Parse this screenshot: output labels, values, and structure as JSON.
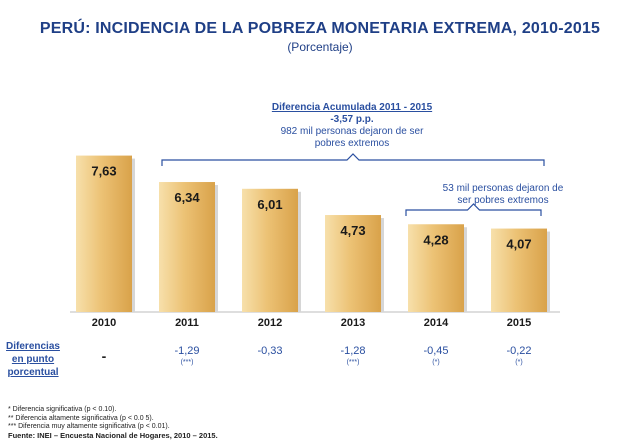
{
  "header": {
    "title": "PERÚ: INCIDENCIA DE LA POBREZA MONETARIA EXTREMA, 2010-2015",
    "subtitle": "(Porcentaje)"
  },
  "annotations": {
    "accumulated": {
      "title": "Diferencia Acumulada 2011 - 2015",
      "value": "-3,57 p.p.",
      "line1": "982 mil personas dejaron de ser",
      "line2": "pobres extremos"
    },
    "last_year": {
      "line1": "53 mil personas dejaron de",
      "line2": "ser pobres extremos"
    }
  },
  "differences": {
    "label_line1": "Diferencias",
    "label_line2": "en punto",
    "label_line3": "porcentual",
    "items": [
      {
        "value": "-",
        "sig": ""
      },
      {
        "value": "-1,29",
        "sig": "(***)"
      },
      {
        "value": "-0,33",
        "sig": ""
      },
      {
        "value": "-1,28",
        "sig": "(***)"
      },
      {
        "value": "-0,45",
        "sig": "(*)"
      },
      {
        "value": "-0,22",
        "sig": "(*)"
      }
    ]
  },
  "notes": {
    "n1": "* Diferencia significativa (p < 0.10).",
    "n2": "** Diferencia altamente significativa (p < 0.0 5).",
    "n3": "*** Diferencia muy altamente significativa (p < 0.01).",
    "source": "Fuente: INEI – Encuesta Nacional de Hogares, 2010 – 2015."
  },
  "colors": {
    "bar_light": "#f7e0ab",
    "bar_mid": "#ecc275",
    "bar_dark": "#d9a24a",
    "accent_blue": "#2a4fa0"
  },
  "chart_data": {
    "type": "bar",
    "categories": [
      "2010",
      "2011",
      "2012",
      "2013",
      "2014",
      "2015"
    ],
    "values": [
      7.63,
      6.34,
      6.01,
      4.73,
      4.28,
      4.07
    ],
    "labels": [
      "7,63",
      "6,34",
      "6,01",
      "4,73",
      "4,28",
      "4,07"
    ],
    "title": "PERÚ: INCIDENCIA DE LA POBREZA MONETARIA EXTREMA, 2010-2015",
    "subtitle": "(Porcentaje)",
    "ylim": [
      0,
      8
    ],
    "grid": false,
    "legend": "none"
  }
}
